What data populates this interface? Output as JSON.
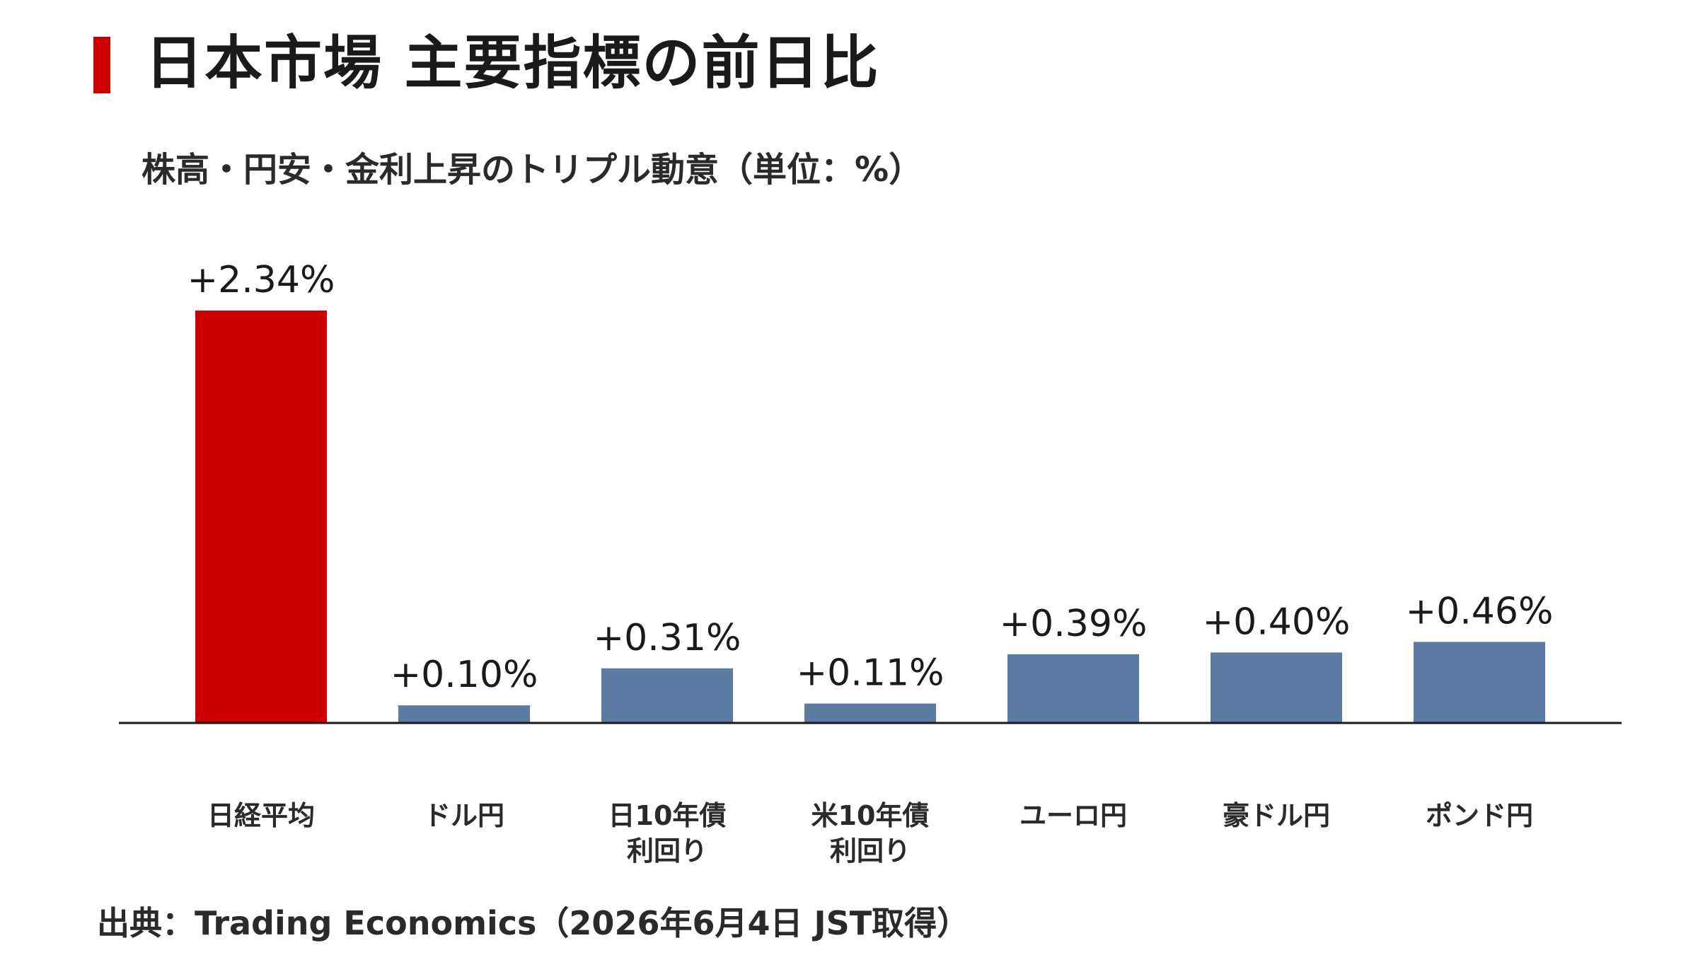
{
  "header": {
    "title": "日本市場 主要指標の前日比",
    "accent_color": "#cc0000"
  },
  "source": "出典：Trading Economics（2026年6月4日 JST取得）",
  "chart_data": {
    "type": "bar",
    "title": "株高・円安・金利上昇のトリプル動意（単位：%）",
    "unit": "%",
    "categories": [
      [
        "日経平均"
      ],
      [
        "ドル円"
      ],
      [
        "日10年債",
        "利回り"
      ],
      [
        "米10年債",
        "利回り"
      ],
      [
        "ユーロ円"
      ],
      [
        "豪ドル円"
      ],
      [
        "ポンド円"
      ]
    ],
    "values": [
      2.34,
      0.1,
      0.31,
      0.11,
      0.39,
      0.4,
      0.46
    ],
    "value_labels": [
      "+2.34%",
      "+0.10%",
      "+0.31%",
      "+0.11%",
      "+0.39%",
      "+0.40%",
      "+0.46%"
    ],
    "ylim": [
      0,
      2.34
    ],
    "colors": [
      "#cc0000",
      "#5b7ba3",
      "#5b7ba3",
      "#5b7ba3",
      "#5b7ba3",
      "#5b7ba3",
      "#5b7ba3"
    ],
    "grid": false,
    "legend": "none"
  }
}
